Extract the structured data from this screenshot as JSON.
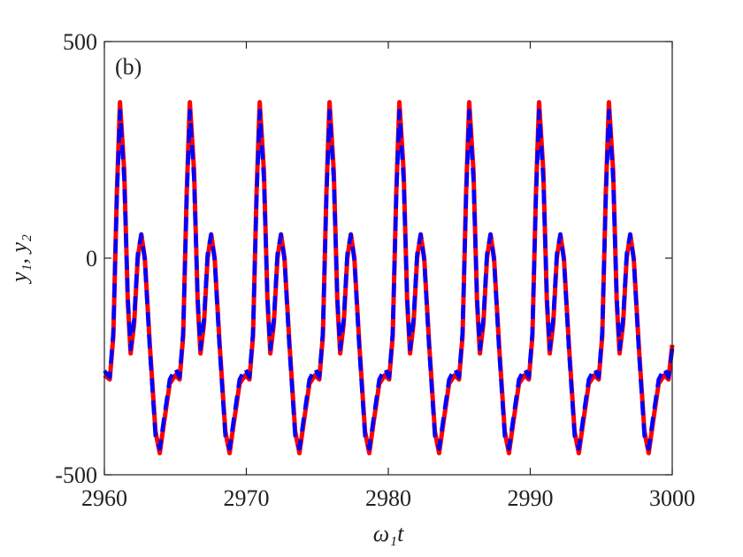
{
  "chart_data": {
    "type": "line",
    "annotation": "(b)",
    "x_label": "ω₁t",
    "y_label": "y₁, y₂",
    "xlim": [
      2960,
      3000
    ],
    "xticks": [
      2960,
      2970,
      2980,
      2990,
      3000
    ],
    "ylim": [
      -500,
      500
    ],
    "yticks": [
      -500,
      0,
      500
    ],
    "grid": false,
    "x": [
      2960,
      2960.38,
      2960.63,
      2960.88,
      2961.1,
      2961.4,
      2961.65,
      2961.85,
      2962.1,
      2962.35,
      2962.6,
      2962.85,
      2963.2,
      2963.6,
      2963.9,
      2964.2,
      2964.6,
      2965.0,
      2965.3,
      2965.55,
      2965.8,
      2966.02,
      2966.32,
      2966.57,
      2966.77,
      2967.02,
      2967.27,
      2967.52,
      2967.77,
      2968.12,
      2968.52,
      2968.82,
      2969.12,
      2969.52,
      2969.92,
      2970.22,
      2970.47,
      2970.72,
      2970.94,
      2971.24,
      2971.49,
      2971.69,
      2971.94,
      2972.19,
      2972.44,
      2972.69,
      2973.04,
      2973.44,
      2973.74,
      2974.04,
      2974.44,
      2974.84,
      2975.14,
      2975.39,
      2975.64,
      2975.86,
      2976.16,
      2976.41,
      2976.61,
      2976.86,
      2977.11,
      2977.36,
      2977.61,
      2977.96,
      2978.36,
      2978.66,
      2978.96,
      2979.36,
      2979.76,
      2980.06,
      2980.31,
      2980.56,
      2980.78,
      2981.08,
      2981.33,
      2981.53,
      2981.78,
      2982.03,
      2982.28,
      2982.53,
      2982.88,
      2983.28,
      2983.58,
      2983.88,
      2984.28,
      2984.68,
      2984.98,
      2985.23,
      2985.48,
      2985.7,
      2986.0,
      2986.25,
      2986.45,
      2986.7,
      2986.95,
      2987.2,
      2987.45,
      2987.8,
      2988.2,
      2988.5,
      2988.8,
      2989.2,
      2989.6,
      2989.9,
      2990.15,
      2990.4,
      2990.62,
      2990.92,
      2991.17,
      2991.37,
      2991.62,
      2991.87,
      2992.12,
      2992.37,
      2992.72,
      2993.12,
      2993.42,
      2993.72,
      2994.12,
      2994.52,
      2994.82,
      2995.07,
      2995.32,
      2995.54,
      2995.84,
      2996.09,
      2996.29,
      2996.54,
      2996.79,
      2997.04,
      2997.29,
      2997.64,
      2998.04,
      2998.34,
      2998.64,
      2999.04,
      2999.44,
      2999.74,
      3000
    ],
    "series": [
      {
        "name": "y₁",
        "color": "#ff0000",
        "dashed": false,
        "values": [
          -270,
          -280,
          -180,
          150,
          360,
          200,
          -100,
          -220,
          -150,
          0,
          55,
          0,
          -200,
          -400,
          -450,
          -380,
          -290,
          -270,
          -280,
          -180,
          150,
          360,
          200,
          -100,
          -220,
          -150,
          0,
          55,
          0,
          -200,
          -400,
          -450,
          -380,
          -290,
          -270,
          -280,
          -180,
          150,
          360,
          200,
          -100,
          -220,
          -150,
          0,
          55,
          0,
          -200,
          -400,
          -450,
          -380,
          -290,
          -270,
          -280,
          -180,
          150,
          360,
          200,
          -100,
          -220,
          -150,
          0,
          55,
          0,
          -200,
          -400,
          -450,
          -380,
          -290,
          -270,
          -280,
          -180,
          150,
          360,
          200,
          -100,
          -220,
          -150,
          0,
          55,
          0,
          -200,
          -400,
          -450,
          -380,
          -290,
          -270,
          -280,
          -180,
          150,
          360,
          200,
          -100,
          -220,
          -150,
          0,
          55,
          0,
          -200,
          -400,
          -450,
          -380,
          -290,
          -270,
          -280,
          -180,
          150,
          360,
          200,
          -100,
          -220,
          -150,
          0,
          55,
          0,
          -200,
          -400,
          -450,
          -380,
          -290,
          -270,
          -280,
          -180,
          150,
          360,
          200,
          -100,
          -220,
          -150,
          0,
          55,
          0,
          -200,
          -400,
          -450,
          -380,
          -290,
          -270,
          -280,
          -200
        ]
      },
      {
        "name": "y₂",
        "color": "#0000ff",
        "dashed": true,
        "values": [
          -260,
          -275,
          -170,
          140,
          340,
          180,
          -90,
          -210,
          -140,
          10,
          55,
          -5,
          -210,
          -410,
          -440,
          -370,
          -280,
          -255,
          -275,
          -170,
          140,
          340,
          180,
          -90,
          -210,
          -140,
          10,
          55,
          -5,
          -210,
          -410,
          -440,
          -370,
          -280,
          -255,
          -275,
          -170,
          140,
          340,
          180,
          -90,
          -210,
          -140,
          10,
          55,
          -5,
          -210,
          -410,
          -440,
          -370,
          -280,
          -255,
          -275,
          -170,
          140,
          340,
          180,
          -90,
          -210,
          -140,
          10,
          55,
          -5,
          -210,
          -410,
          -440,
          -370,
          -280,
          -255,
          -275,
          -170,
          140,
          340,
          180,
          -90,
          -210,
          -140,
          10,
          55,
          -5,
          -210,
          -410,
          -440,
          -370,
          -280,
          -255,
          -275,
          -170,
          140,
          340,
          180,
          -90,
          -210,
          -140,
          10,
          55,
          -5,
          -210,
          -410,
          -440,
          -370,
          -280,
          -255,
          -275,
          -170,
          140,
          340,
          180,
          -90,
          -210,
          -140,
          10,
          55,
          -5,
          -210,
          -410,
          -440,
          -370,
          -280,
          -255,
          -275,
          -170,
          140,
          340,
          180,
          -90,
          -210,
          -140,
          10,
          55,
          -5,
          -210,
          -410,
          -440,
          -370,
          -280,
          -255,
          -275,
          -210
        ]
      }
    ]
  }
}
